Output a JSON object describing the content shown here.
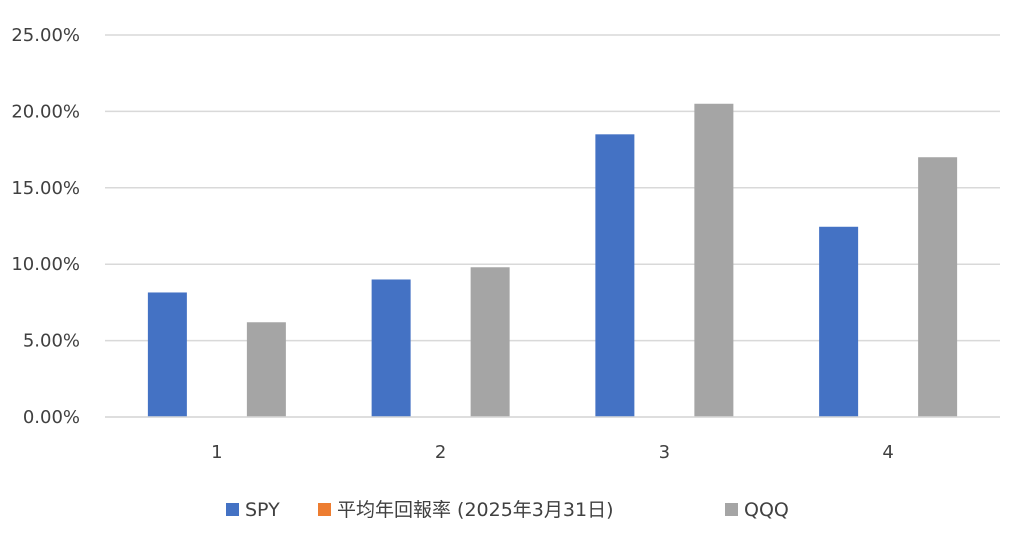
{
  "chart_data": {
    "type": "bar",
    "categories": [
      "1",
      "2",
      "3",
      "4"
    ],
    "series": [
      {
        "name": "SPY",
        "color": "#4472C4",
        "values": [
          0.0815,
          0.09,
          0.185,
          0.1245
        ]
      },
      {
        "name": "平均年回報率 (2025年3月31日)",
        "color": "#ED7D31",
        "values": [
          0,
          0,
          0,
          0
        ]
      },
      {
        "name": "QQQ",
        "color": "#A5A5A5",
        "values": [
          0.062,
          0.098,
          0.205,
          0.17
        ]
      }
    ],
    "ylim": [
      0,
      0.25
    ],
    "yticks": [
      0,
      0.05,
      0.1,
      0.15,
      0.2,
      0.25
    ],
    "ytick_labels": [
      "0.00%",
      "5.00%",
      "10.00%",
      "15.00%",
      "20.00%",
      "25.00%"
    ],
    "grid": true,
    "legend_position": "bottom",
    "gridline_color": "#D9D9D9"
  }
}
